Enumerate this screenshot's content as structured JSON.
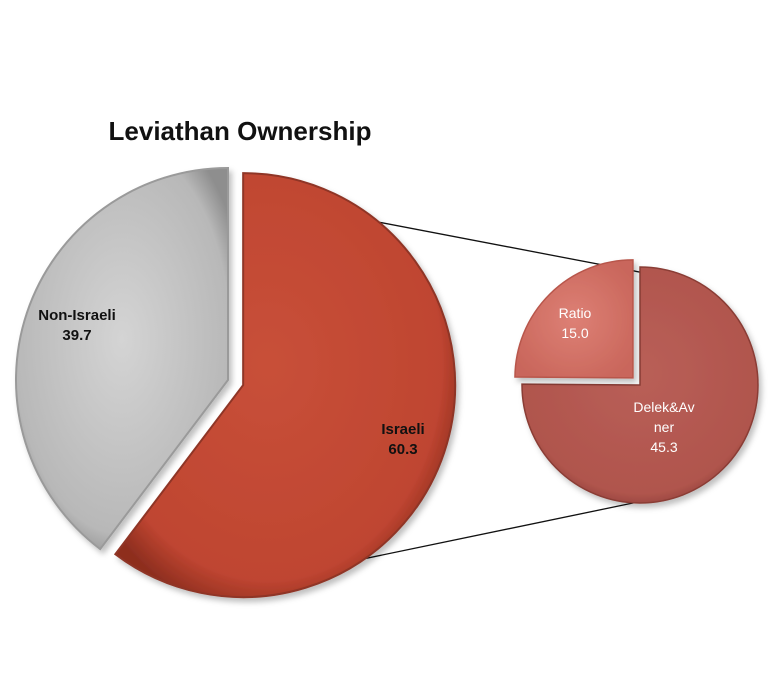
{
  "chart_data": {
    "type": "pie",
    "title": "Leviathan Ownership",
    "main": {
      "slices": [
        {
          "label": "Non-Israeli",
          "value": 39.7,
          "color": "#bcbcbc"
        },
        {
          "label": "Israeli",
          "value": 60.3,
          "color": "#c24a36"
        }
      ],
      "exploded": "Israeli"
    },
    "breakdown": {
      "of": "Israeli",
      "slices": [
        {
          "label": "Ratio",
          "value": 15.0,
          "color": "#d9776c"
        },
        {
          "label": "Delek&Av ner",
          "value": 45.3,
          "color": "#b55a52"
        }
      ],
      "exploded": "Ratio"
    },
    "connector_lines": true,
    "legend": "none"
  }
}
